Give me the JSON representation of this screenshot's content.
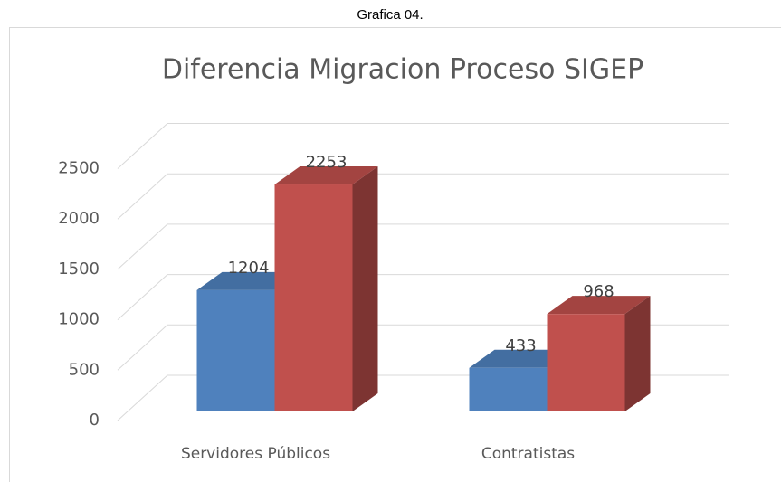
{
  "chart_data": {
    "type": "bar3d",
    "caption": "Grafica 04.",
    "title": "Diferencia Migracion Proceso SIGEP",
    "categories": [
      "Servidores Públicos",
      "Contratistas"
    ],
    "series": [
      {
        "color": "#4f81bd",
        "values": [
          1204,
          433
        ]
      },
      {
        "color": "#c0504d",
        "values": [
          2253,
          968
        ]
      }
    ],
    "ylim": [
      0,
      2500
    ],
    "yticks": [
      0,
      500,
      1000,
      1500,
      2000,
      2500
    ],
    "grid": true
  }
}
